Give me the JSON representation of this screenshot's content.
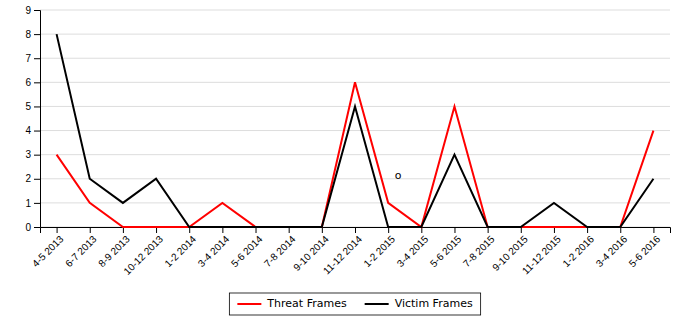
{
  "chart_data": {
    "type": "line",
    "categories": [
      "4-5 2013",
      "6-7 2013",
      "8-9 2013",
      "10-12 2013",
      "1-2 2014",
      "3-4 2014",
      "5-6 2014",
      "7-8 2014",
      "9-10 2014",
      "11-12 2014",
      "1-2 2015",
      "3-4 2015",
      "5-6 2015",
      "7-8 2015",
      "9-10 2015",
      "11-12 2015",
      "1-2 2016",
      "3-4 2016",
      "5-6 2016"
    ],
    "series": [
      {
        "name": "Threat Frames",
        "color": "#FF0000",
        "values": [
          3,
          1,
          0,
          0,
          0,
          1,
          0,
          0,
          0,
          6,
          1,
          0,
          5,
          0,
          0,
          0,
          0,
          0,
          4
        ]
      },
      {
        "name": "Victim Frames",
        "color": "#000000",
        "values": [
          8,
          2,
          1,
          2,
          0,
          0,
          0,
          0,
          0,
          5,
          0,
          0,
          3,
          0,
          0,
          1,
          0,
          0,
          2
        ]
      }
    ],
    "annotations": [
      {
        "text": "o",
        "x": 10.3,
        "y": 2.1
      }
    ],
    "ylim": [
      0,
      9
    ],
    "yticks": [
      0,
      1,
      2,
      3,
      4,
      5,
      6,
      7,
      8,
      9
    ],
    "grid": true,
    "legend": "bottom"
  }
}
